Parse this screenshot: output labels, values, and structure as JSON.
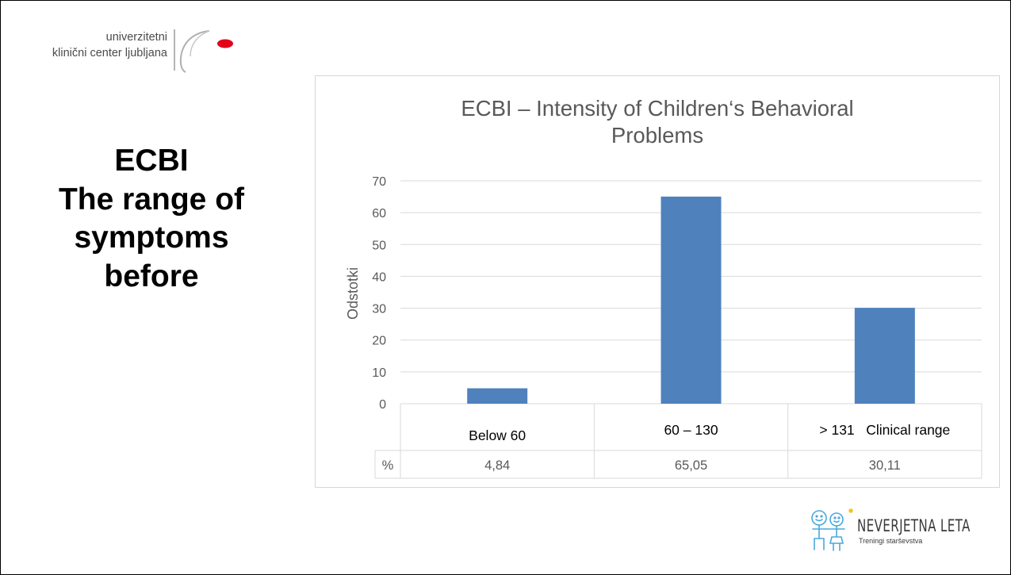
{
  "logo": {
    "line1": "univerzitetni",
    "line2": "klinični center ljubljana"
  },
  "heading": {
    "lines": [
      "ECBI",
      "The range of",
      "symptoms",
      "before"
    ]
  },
  "footer_logo": {
    "name": "NEVERJETNA LETA",
    "tagline": "Treningi starševstva"
  },
  "colors": {
    "bar": "#4f81bd",
    "grid": "#d9d9d9",
    "axis_text": "#595959",
    "logo_accent": "#e2001a"
  },
  "chart_data": {
    "type": "bar",
    "title_lines": [
      "ECBI – Intensity of Children‘s Behavioral",
      "Problems"
    ],
    "ylabel": "Odstotki",
    "ylim": [
      0,
      70
    ],
    "yticks": [
      0,
      10,
      20,
      30,
      40,
      50,
      60,
      70
    ],
    "grid": true,
    "categories": [
      "Below 60",
      "60 – 130",
      "> 131   Clinical range"
    ],
    "values": [
      4.84,
      65.05,
      30.11
    ],
    "table_row_label": "%",
    "table_values": [
      "4,84",
      "65,05",
      "30,11"
    ]
  }
}
